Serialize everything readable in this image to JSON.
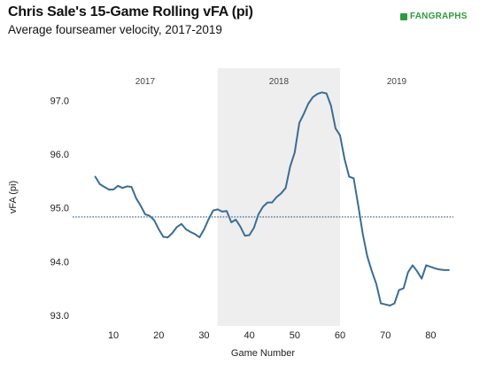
{
  "header": {
    "title": "Chris Sale's 15-Game Rolling vFA (pi)",
    "subtitle": "Average fourseamer velocity, 2017-2019",
    "logo_text": "FANGRAPHS"
  },
  "colors": {
    "line": "#3a6d96",
    "reference_line": "#2c5a86",
    "shaded_band": "#eeeeee",
    "logo": "#2e9a3c"
  },
  "chart_data": {
    "type": "line",
    "title": "Chris Sale's 15-Game Rolling vFA (pi)",
    "subtitle": "Average fourseamer velocity, 2017-2019",
    "xlabel": "Game Number",
    "ylabel": "vFA (pi)",
    "xlim": [
      1,
      85
    ],
    "ylim": [
      92.8,
      97.6
    ],
    "xticks": [
      10,
      20,
      30,
      40,
      50,
      60,
      70,
      80
    ],
    "yticks": [
      93.0,
      94.0,
      95.0,
      96.0,
      97.0
    ],
    "ytick_labels": [
      "93.0",
      "94.0",
      "95.0",
      "96.0",
      "97.0"
    ],
    "grid": false,
    "reference_line": {
      "y": 94.83,
      "style": "dotted"
    },
    "segments": [
      {
        "label": "2017",
        "x_start": 1,
        "x_end": 33,
        "shaded": false
      },
      {
        "label": "2018",
        "x_start": 33,
        "x_end": 60,
        "shaded": true
      },
      {
        "label": "2019",
        "x_start": 60,
        "x_end": 85,
        "shaded": false
      }
    ],
    "series": [
      {
        "x": [
          6,
          7,
          8,
          9,
          10,
          11,
          12,
          13,
          14,
          15,
          16,
          17,
          18,
          19,
          20,
          21,
          22,
          23,
          24,
          25,
          26,
          27,
          28,
          29,
          30,
          31,
          32,
          33,
          34,
          35,
          36,
          37,
          38,
          39,
          40,
          41,
          42,
          43,
          44,
          45,
          46,
          47,
          48,
          49,
          50,
          51,
          52,
          53,
          54,
          55,
          56,
          57,
          58,
          59,
          60,
          61,
          62,
          63,
          64,
          65,
          66,
          67,
          68,
          69,
          70,
          71,
          72,
          73,
          74,
          75,
          76,
          77,
          78,
          79,
          80,
          81,
          82,
          83,
          84
        ],
        "y": [
          95.58,
          95.44,
          95.39,
          95.34,
          95.34,
          95.41,
          95.37,
          95.4,
          95.39,
          95.18,
          95.04,
          94.88,
          94.85,
          94.77,
          94.6,
          94.46,
          94.45,
          94.53,
          94.64,
          94.7,
          94.6,
          94.55,
          94.51,
          94.45,
          94.6,
          94.79,
          94.95,
          94.97,
          94.93,
          94.94,
          94.73,
          94.78,
          94.65,
          94.48,
          94.49,
          94.63,
          94.88,
          95.02,
          95.1,
          95.1,
          95.2,
          95.27,
          95.37,
          95.77,
          96.03,
          96.58,
          96.75,
          96.94,
          97.06,
          97.12,
          97.15,
          97.13,
          96.9,
          96.48,
          96.35,
          95.91,
          95.58,
          95.55,
          95.05,
          94.52,
          94.1,
          93.82,
          93.58,
          93.22,
          93.2,
          93.18,
          93.22,
          93.47,
          93.5,
          93.8,
          93.93,
          93.82,
          93.68,
          93.93,
          93.9,
          93.87,
          93.85,
          93.84,
          93.84
        ]
      }
    ]
  }
}
